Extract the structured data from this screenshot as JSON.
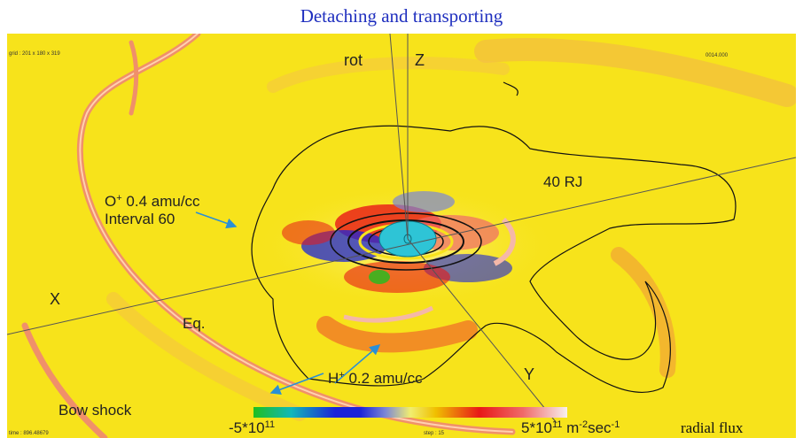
{
  "title": "Detaching and transporting",
  "corner_text": {
    "top_left": "grid : 201 x 180 x 319",
    "top_right": "0014.000",
    "bottom_left": "time : 896.48679",
    "bottom_center": "step : 15"
  },
  "axes": {
    "rot": "rot",
    "z": "Z",
    "x": "X",
    "y": "Y",
    "eq": "Eq."
  },
  "annotations": {
    "o_plus_base": "O",
    "o_plus_sup": "+",
    "o_plus_rest": " 0.4 amu/cc",
    "interval": "Interval 60",
    "distance": "40 RJ",
    "h_plus_base": "H",
    "h_plus_sup": "+",
    "h_plus_rest": " 0.2 amu/cc",
    "bow_shock": "Bow shock"
  },
  "colorbar": {
    "min_base": "-5*10",
    "min_exp": "11",
    "max_base": "5*10",
    "max_exp": "11",
    "unit_a": " m",
    "unit_a_exp": "-2",
    "unit_b": "sec",
    "unit_b_exp": "-1",
    "quantity": "radial flux"
  },
  "colors": {
    "title": "#1f2fbf",
    "background": "#f7e31b",
    "arrow": "#2a8fd6",
    "planet": "#2ec4d6"
  }
}
